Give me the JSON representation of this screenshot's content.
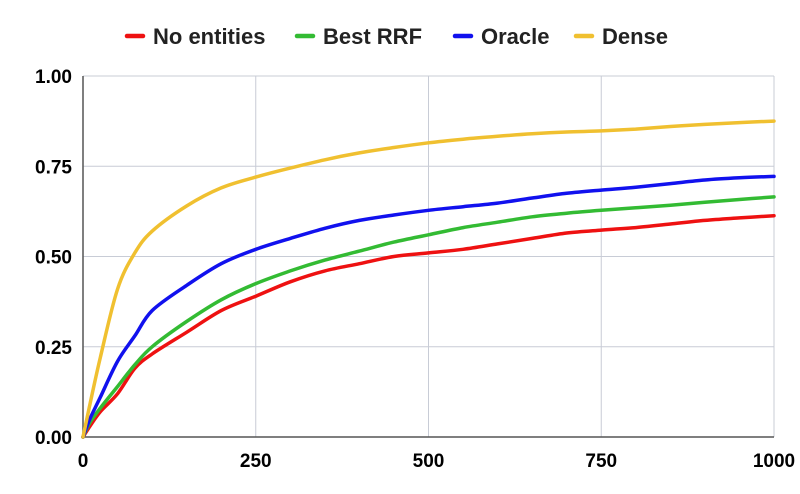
{
  "chart_data": {
    "type": "line",
    "title": "",
    "xlabel": "",
    "ylabel": "",
    "xlim": [
      0,
      1000
    ],
    "ylim": [
      0,
      1.0
    ],
    "x_ticks": [
      0,
      250,
      500,
      750,
      1000
    ],
    "x_tick_labels": [
      "0",
      "250",
      "500",
      "750",
      "1000"
    ],
    "y_ticks": [
      0,
      0.25,
      0.5,
      0.75,
      1.0
    ],
    "y_tick_labels": [
      "0.00",
      "0.25",
      "0.50",
      "0.75",
      "1.00"
    ],
    "grid": true,
    "legend_position": "top",
    "series": [
      {
        "name": "No entities",
        "color": "#ee1111",
        "x": [
          0,
          10,
          25,
          50,
          75,
          100,
          150,
          200,
          250,
          300,
          350,
          400,
          450,
          500,
          550,
          600,
          650,
          700,
          750,
          800,
          850,
          900,
          950,
          1000
        ],
        "y": [
          0,
          0.03,
          0.07,
          0.12,
          0.19,
          0.23,
          0.29,
          0.35,
          0.39,
          0.43,
          0.46,
          0.48,
          0.5,
          0.51,
          0.52,
          0.535,
          0.55,
          0.565,
          0.573,
          0.58,
          0.59,
          0.6,
          0.607,
          0.613
        ]
      },
      {
        "name": "Best RRF",
        "color": "#33bb33",
        "x": [
          0,
          10,
          25,
          50,
          75,
          100,
          150,
          200,
          250,
          300,
          350,
          400,
          450,
          500,
          550,
          600,
          650,
          700,
          750,
          800,
          850,
          900,
          950,
          1000
        ],
        "y": [
          0,
          0.04,
          0.08,
          0.14,
          0.2,
          0.25,
          0.32,
          0.38,
          0.425,
          0.46,
          0.49,
          0.515,
          0.54,
          0.56,
          0.58,
          0.595,
          0.61,
          0.62,
          0.628,
          0.635,
          0.642,
          0.65,
          0.658,
          0.665
        ]
      },
      {
        "name": "Oracle",
        "color": "#1111ee",
        "x": [
          0,
          10,
          25,
          50,
          75,
          100,
          150,
          200,
          250,
          300,
          350,
          400,
          450,
          500,
          550,
          600,
          650,
          700,
          750,
          800,
          850,
          900,
          950,
          1000
        ],
        "y": [
          0,
          0.05,
          0.11,
          0.21,
          0.28,
          0.35,
          0.42,
          0.48,
          0.52,
          0.55,
          0.578,
          0.6,
          0.615,
          0.628,
          0.638,
          0.648,
          0.662,
          0.675,
          0.684,
          0.692,
          0.702,
          0.712,
          0.718,
          0.722
        ]
      },
      {
        "name": "Dense",
        "color": "#f0c030",
        "x": [
          0,
          10,
          25,
          50,
          75,
          100,
          150,
          200,
          250,
          300,
          350,
          400,
          450,
          500,
          550,
          600,
          650,
          700,
          750,
          800,
          850,
          900,
          950,
          1000
        ],
        "y": [
          0,
          0.09,
          0.22,
          0.41,
          0.51,
          0.57,
          0.64,
          0.69,
          0.72,
          0.745,
          0.768,
          0.787,
          0.802,
          0.815,
          0.825,
          0.833,
          0.84,
          0.845,
          0.848,
          0.853,
          0.86,
          0.866,
          0.871,
          0.875
        ]
      }
    ]
  }
}
